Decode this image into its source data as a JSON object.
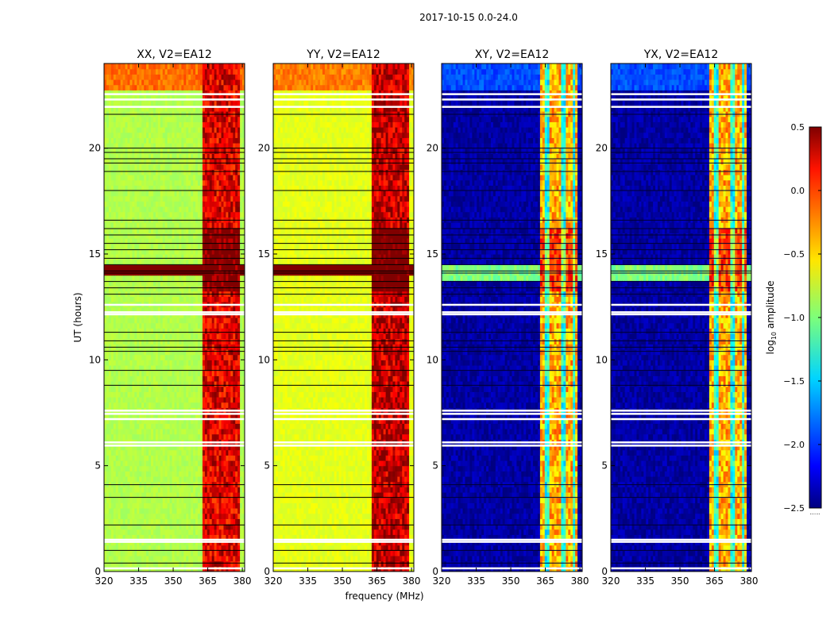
{
  "figure": {
    "suptitle": "2017-10-15 0.0-24.0",
    "xlabel": "frequency (MHz)",
    "ylabel": "UT (hours)"
  },
  "chart_data": {
    "type": "heatmap",
    "title": "2017-10-15 0.0-24.0",
    "xlabel": "frequency (MHz)",
    "ylabel": "UT (hours)",
    "xlim": [
      320,
      381
    ],
    "ylim": [
      0,
      24
    ],
    "xticks": [
      320,
      335,
      350,
      365,
      380
    ],
    "yticks": [
      0,
      5,
      10,
      15,
      20
    ],
    "colormap": "jet",
    "colorbar": {
      "label": "log10 amplitude",
      "label_main": "log",
      "label_sub": "10",
      "label_rest": " amplitude",
      "range": [
        -2.5,
        0.5
      ],
      "ticks": [
        "0.5",
        "0.0",
        "−0.5",
        "−1.0",
        "−1.5",
        "−2.0",
        "−2.5"
      ],
      "tick_values": [
        0.5,
        0.0,
        -0.5,
        -1.0,
        -1.5,
        -2.0,
        -2.5
      ],
      "extra_label": "......"
    },
    "bright_band_mhz": [
      363,
      379
    ],
    "flagged_white_hours": [
      0.15,
      1.4,
      1.5,
      5.95,
      6.1,
      7.2,
      7.45,
      7.6,
      12.15,
      12.25,
      12.6,
      22.3,
      22.55,
      21.95
    ],
    "flagged_black_hours": [
      0.4,
      1.0,
      2.2,
      3.5,
      4.1,
      8.8,
      9.5,
      10.4,
      10.6,
      10.9,
      11.3,
      13.1,
      13.4,
      13.7,
      14.1,
      14.2,
      14.5,
      14.8,
      15.2,
      15.5,
      15.9,
      16.2,
      16.6,
      18.0,
      18.9,
      19.3,
      19.5,
      19.8,
      20.0,
      21.6
    ],
    "panels": [
      {
        "title": "XX, V2=EA12",
        "pol": "XX",
        "baseline": "-0.85",
        "band": "0.2",
        "top": "-0.2"
      },
      {
        "title": "YY, V2=EA12",
        "pol": "YY",
        "baseline": "-0.7",
        "band": "0.3",
        "top": "-0.25"
      },
      {
        "title": "XY, V2=EA12",
        "pol": "XY",
        "baseline": "-2.4",
        "band": "-0.4",
        "top": "-1.9"
      },
      {
        "title": "YX, V2=EA12",
        "pol": "YX",
        "baseline": "-2.4",
        "band": "-0.4",
        "top": "-1.9"
      }
    ]
  }
}
